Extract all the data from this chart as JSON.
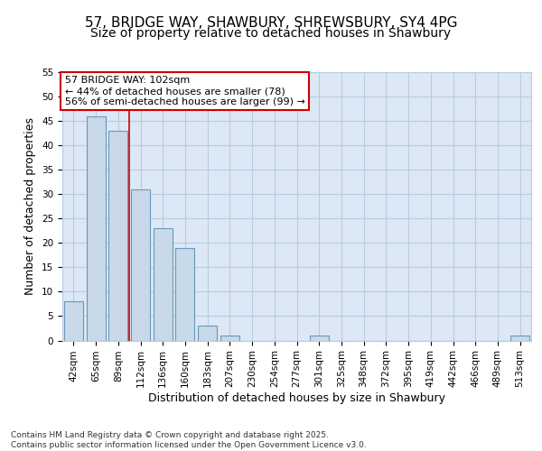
{
  "title1": "57, BRIDGE WAY, SHAWBURY, SHREWSBURY, SY4 4PG",
  "title2": "Size of property relative to detached houses in Shawbury",
  "xlabel": "Distribution of detached houses by size in Shawbury",
  "ylabel": "Number of detached properties",
  "categories": [
    "42sqm",
    "65sqm",
    "89sqm",
    "112sqm",
    "136sqm",
    "160sqm",
    "183sqm",
    "207sqm",
    "230sqm",
    "254sqm",
    "277sqm",
    "301sqm",
    "325sqm",
    "348sqm",
    "372sqm",
    "395sqm",
    "419sqm",
    "442sqm",
    "466sqm",
    "489sqm",
    "513sqm"
  ],
  "values": [
    8,
    46,
    43,
    31,
    23,
    19,
    3,
    1,
    0,
    0,
    0,
    1,
    0,
    0,
    0,
    0,
    0,
    0,
    0,
    0,
    1
  ],
  "bar_color": "#c9d9ea",
  "bar_edge_color": "#6699bb",
  "bar_edge_width": 0.8,
  "grid_color": "#b8cce0",
  "background_color": "#dce8f5",
  "vline_x_idx": 2,
  "vline_color": "#cc0000",
  "annotation_line1": "57 BRIDGE WAY: 102sqm",
  "annotation_line2": "← 44% of detached houses are smaller (78)",
  "annotation_line3": "56% of semi-detached houses are larger (99) →",
  "annotation_box_color": "#ffffff",
  "annotation_box_edge": "#cc0000",
  "ylim": [
    0,
    55
  ],
  "yticks": [
    0,
    5,
    10,
    15,
    20,
    25,
    30,
    35,
    40,
    45,
    50,
    55
  ],
  "footer_text": "Contains HM Land Registry data © Crown copyright and database right 2025.\nContains public sector information licensed under the Open Government Licence v3.0.",
  "title_fontsize": 11,
  "subtitle_fontsize": 10,
  "tick_fontsize": 7.5,
  "label_fontsize": 9,
  "footer_fontsize": 6.5,
  "annot_fontsize": 8
}
